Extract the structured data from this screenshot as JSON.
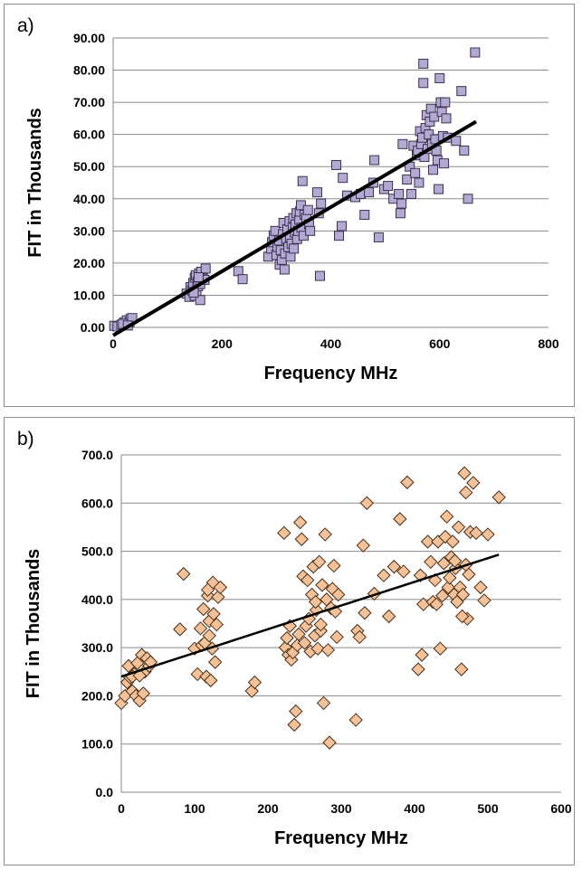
{
  "chart_data": [
    {
      "panel_label": "a)",
      "type": "scatter",
      "xlabel": "Frequency MHz",
      "ylabel": "FIT in Thousands",
      "xlim": [
        0,
        800
      ],
      "ylim": [
        0,
        90
      ],
      "xticks": [
        0,
        200,
        400,
        600,
        800
      ],
      "yticks": [
        0,
        10,
        20,
        30,
        40,
        50,
        60,
        70,
        80,
        90
      ],
      "xtick_decimals": 0,
      "ytick_decimals": 2,
      "grid": true,
      "marker": "square",
      "marker_color": "#b4a9d2",
      "marker_edge": "#3a3150",
      "trendline": {
        "x": [
          0,
          667
        ],
        "y": [
          -2.5,
          64
        ]
      },
      "points": [
        [
          2,
          0.5
        ],
        [
          8,
          0.3
        ],
        [
          15,
          0.8
        ],
        [
          20,
          1.5
        ],
        [
          25,
          2.2
        ],
        [
          30,
          1.6
        ],
        [
          32,
          2.6
        ],
        [
          35,
          2.9
        ],
        [
          18,
          1.1
        ],
        [
          27,
          0.6
        ],
        [
          135,
          10.5
        ],
        [
          140,
          9.5
        ],
        [
          142,
          12.5
        ],
        [
          145,
          11.5
        ],
        [
          147,
          13.8
        ],
        [
          150,
          15.5
        ],
        [
          150,
          9.8
        ],
        [
          152,
          16.2
        ],
        [
          153,
          11.2
        ],
        [
          155,
          14.2
        ],
        [
          156,
          12.8
        ],
        [
          158,
          16.8
        ],
        [
          160,
          8.5
        ],
        [
          160,
          13.5
        ],
        [
          162,
          17.3
        ],
        [
          165,
          15.2
        ],
        [
          170,
          18.3
        ],
        [
          168,
          14.8
        ],
        [
          148,
          10.8
        ],
        [
          157,
          15.6
        ],
        [
          230,
          17.5
        ],
        [
          238,
          15
        ],
        [
          285,
          22
        ],
        [
          290,
          24.5
        ],
        [
          292,
          26.5
        ],
        [
          295,
          28.5
        ],
        [
          298,
          30
        ],
        [
          300,
          22.5
        ],
        [
          302,
          25
        ],
        [
          305,
          27
        ],
        [
          306,
          19.5
        ],
        [
          308,
          24
        ],
        [
          310,
          21
        ],
        [
          312,
          29
        ],
        [
          313,
          32.5
        ],
        [
          315,
          18
        ],
        [
          316,
          23
        ],
        [
          318,
          27.5
        ],
        [
          320,
          30.5
        ],
        [
          322,
          25
        ],
        [
          324,
          33
        ],
        [
          325,
          28
        ],
        [
          326,
          22
        ],
        [
          328,
          26
        ],
        [
          330,
          31
        ],
        [
          331,
          34
        ],
        [
          332,
          24.5
        ],
        [
          334,
          29.5
        ],
        [
          335,
          32
        ],
        [
          337,
          35.5
        ],
        [
          338,
          27.5
        ],
        [
          340,
          30
        ],
        [
          342,
          33.5
        ],
        [
          343,
          36
        ],
        [
          345,
          38
        ],
        [
          346,
          31
        ],
        [
          348,
          45.5
        ],
        [
          350,
          28.5
        ],
        [
          352,
          35
        ],
        [
          355,
          34
        ],
        [
          358,
          36.5
        ],
        [
          360,
          32
        ],
        [
          362,
          30
        ],
        [
          375,
          42
        ],
        [
          380,
          16
        ],
        [
          382,
          38.5
        ],
        [
          378,
          35.5
        ],
        [
          410,
          50.5
        ],
        [
          415,
          28.5
        ],
        [
          420,
          31.5
        ],
        [
          422,
          46.5
        ],
        [
          430,
          41
        ],
        [
          445,
          40.5
        ],
        [
          455,
          41.5
        ],
        [
          462,
          35
        ],
        [
          470,
          42
        ],
        [
          478,
          45
        ],
        [
          480,
          52
        ],
        [
          488,
          28
        ],
        [
          498,
          43
        ],
        [
          505,
          44
        ],
        [
          515,
          40
        ],
        [
          525,
          41.5
        ],
        [
          528,
          35.5
        ],
        [
          530,
          38.5
        ],
        [
          532,
          57
        ],
        [
          540,
          46
        ],
        [
          545,
          50
        ],
        [
          548,
          41.5
        ],
        [
          552,
          56.5
        ],
        [
          555,
          48
        ],
        [
          558,
          53.5
        ],
        [
          560,
          55
        ],
        [
          562,
          45
        ],
        [
          564,
          61
        ],
        [
          566,
          57
        ],
        [
          568,
          59
        ],
        [
          570,
          82
        ],
        [
          570,
          76
        ],
        [
          572,
          53
        ],
        [
          574,
          62
        ],
        [
          576,
          66
        ],
        [
          578,
          55.5
        ],
        [
          580,
          60
        ],
        [
          582,
          64
        ],
        [
          584,
          68
        ],
        [
          586,
          57
        ],
        [
          588,
          49
        ],
        [
          590,
          65.5
        ],
        [
          592,
          58.5
        ],
        [
          594,
          55
        ],
        [
          596,
          52
        ],
        [
          598,
          43
        ],
        [
          600,
          77.5
        ],
        [
          602,
          70
        ],
        [
          604,
          67
        ],
        [
          606,
          59.5
        ],
        [
          608,
          51
        ],
        [
          610,
          70
        ],
        [
          612,
          65
        ],
        [
          615,
          59
        ],
        [
          630,
          58
        ],
        [
          640,
          73.5
        ],
        [
          645,
          55
        ],
        [
          652,
          40
        ],
        [
          665,
          85.5
        ]
      ]
    },
    {
      "panel_label": "b)",
      "type": "scatter",
      "xlabel": "Frequency MHz",
      "ylabel": "FIT in Thousands",
      "xlim": [
        0,
        600
      ],
      "ylim": [
        0,
        700
      ],
      "xticks": [
        0,
        100,
        200,
        300,
        400,
        500,
        600
      ],
      "yticks": [
        0,
        100,
        200,
        300,
        400,
        500,
        600,
        700
      ],
      "xtick_decimals": 0,
      "ytick_decimals": 1,
      "grid": true,
      "marker": "diamond",
      "marker_color": "#f4c29a",
      "marker_edge": "#4a2e14",
      "trendline": {
        "x": [
          0,
          515
        ],
        "y": [
          240,
          493
        ]
      },
      "points": [
        [
          0,
          185
        ],
        [
          5,
          200
        ],
        [
          8,
          228
        ],
        [
          10,
          262
        ],
        [
          12,
          238
        ],
        [
          15,
          210
        ],
        [
          18,
          245
        ],
        [
          20,
          200
        ],
        [
          22,
          268
        ],
        [
          25,
          190
        ],
        [
          28,
          285
        ],
        [
          30,
          205
        ],
        [
          32,
          250
        ],
        [
          35,
          278
        ],
        [
          38,
          262
        ],
        [
          40,
          270
        ],
        [
          15,
          240
        ],
        [
          25,
          242
        ],
        [
          80,
          338
        ],
        [
          85,
          453
        ],
        [
          100,
          298
        ],
        [
          104,
          245
        ],
        [
          108,
          340
        ],
        [
          110,
          305
        ],
        [
          112,
          380
        ],
        [
          114,
          310
        ],
        [
          116,
          240
        ],
        [
          118,
          408
        ],
        [
          120,
          355
        ],
        [
          122,
          232
        ],
        [
          124,
          298
        ],
        [
          125,
          435
        ],
        [
          126,
          370
        ],
        [
          128,
          270
        ],
        [
          130,
          348
        ],
        [
          132,
          405
        ],
        [
          135,
          425
        ],
        [
          120,
          325
        ],
        [
          118,
          420
        ],
        [
          178,
          210
        ],
        [
          182,
          228
        ],
        [
          222,
          538
        ],
        [
          224,
          300
        ],
        [
          226,
          320
        ],
        [
          228,
          285
        ],
        [
          230,
          345
        ],
        [
          232,
          275
        ],
        [
          234,
          290
        ],
        [
          236,
          140
        ],
        [
          238,
          168
        ],
        [
          240,
          305
        ],
        [
          242,
          328
        ],
        [
          244,
          560
        ],
        [
          246,
          525
        ],
        [
          248,
          448
        ],
        [
          250,
          310
        ],
        [
          252,
          345
        ],
        [
          254,
          440
        ],
        [
          256,
          360
        ],
        [
          258,
          292
        ],
        [
          260,
          410
        ],
        [
          262,
          468
        ],
        [
          264,
          325
        ],
        [
          266,
          378
        ],
        [
          268,
          298
        ],
        [
          270,
          478
        ],
        [
          272,
          335
        ],
        [
          274,
          430
        ],
        [
          276,
          185
        ],
        [
          278,
          535
        ],
        [
          280,
          400
        ],
        [
          282,
          295
        ],
        [
          284,
          103
        ],
        [
          286,
          382
        ],
        [
          288,
          422
        ],
        [
          290,
          470
        ],
        [
          292,
          375
        ],
        [
          294,
          322
        ],
        [
          296,
          410
        ],
        [
          272,
          348
        ],
        [
          265,
          395
        ],
        [
          320,
          150
        ],
        [
          322,
          335
        ],
        [
          325,
          322
        ],
        [
          330,
          512
        ],
        [
          332,
          372
        ],
        [
          335,
          600
        ],
        [
          345,
          412
        ],
        [
          358,
          450
        ],
        [
          365,
          365
        ],
        [
          372,
          468
        ],
        [
          380,
          567
        ],
        [
          385,
          458
        ],
        [
          390,
          643
        ],
        [
          405,
          255
        ],
        [
          408,
          450
        ],
        [
          410,
          285
        ],
        [
          412,
          390
        ],
        [
          418,
          520
        ],
        [
          422,
          478
        ],
        [
          425,
          395
        ],
        [
          428,
          440
        ],
        [
          430,
          390
        ],
        [
          432,
          520
        ],
        [
          435,
          298
        ],
        [
          438,
          408
        ],
        [
          440,
          475
        ],
        [
          442,
          530
        ],
        [
          444,
          572
        ],
        [
          446,
          425
        ],
        [
          448,
          445
        ],
        [
          450,
          488
        ],
        [
          452,
          520
        ],
        [
          454,
          410
        ],
        [
          456,
          465
        ],
        [
          458,
          395
        ],
        [
          460,
          550
        ],
        [
          462,
          425
        ],
        [
          464,
          255
        ],
        [
          466,
          410
        ],
        [
          468,
          662
        ],
        [
          470,
          622
        ],
        [
          472,
          360
        ],
        [
          474,
          452
        ],
        [
          476,
          540
        ],
        [
          480,
          642
        ],
        [
          484,
          538
        ],
        [
          490,
          425
        ],
        [
          495,
          398
        ],
        [
          500,
          535
        ],
        [
          515,
          612
        ],
        [
          465,
          365
        ],
        [
          470,
          472
        ],
        [
          455,
          480
        ]
      ]
    }
  ]
}
